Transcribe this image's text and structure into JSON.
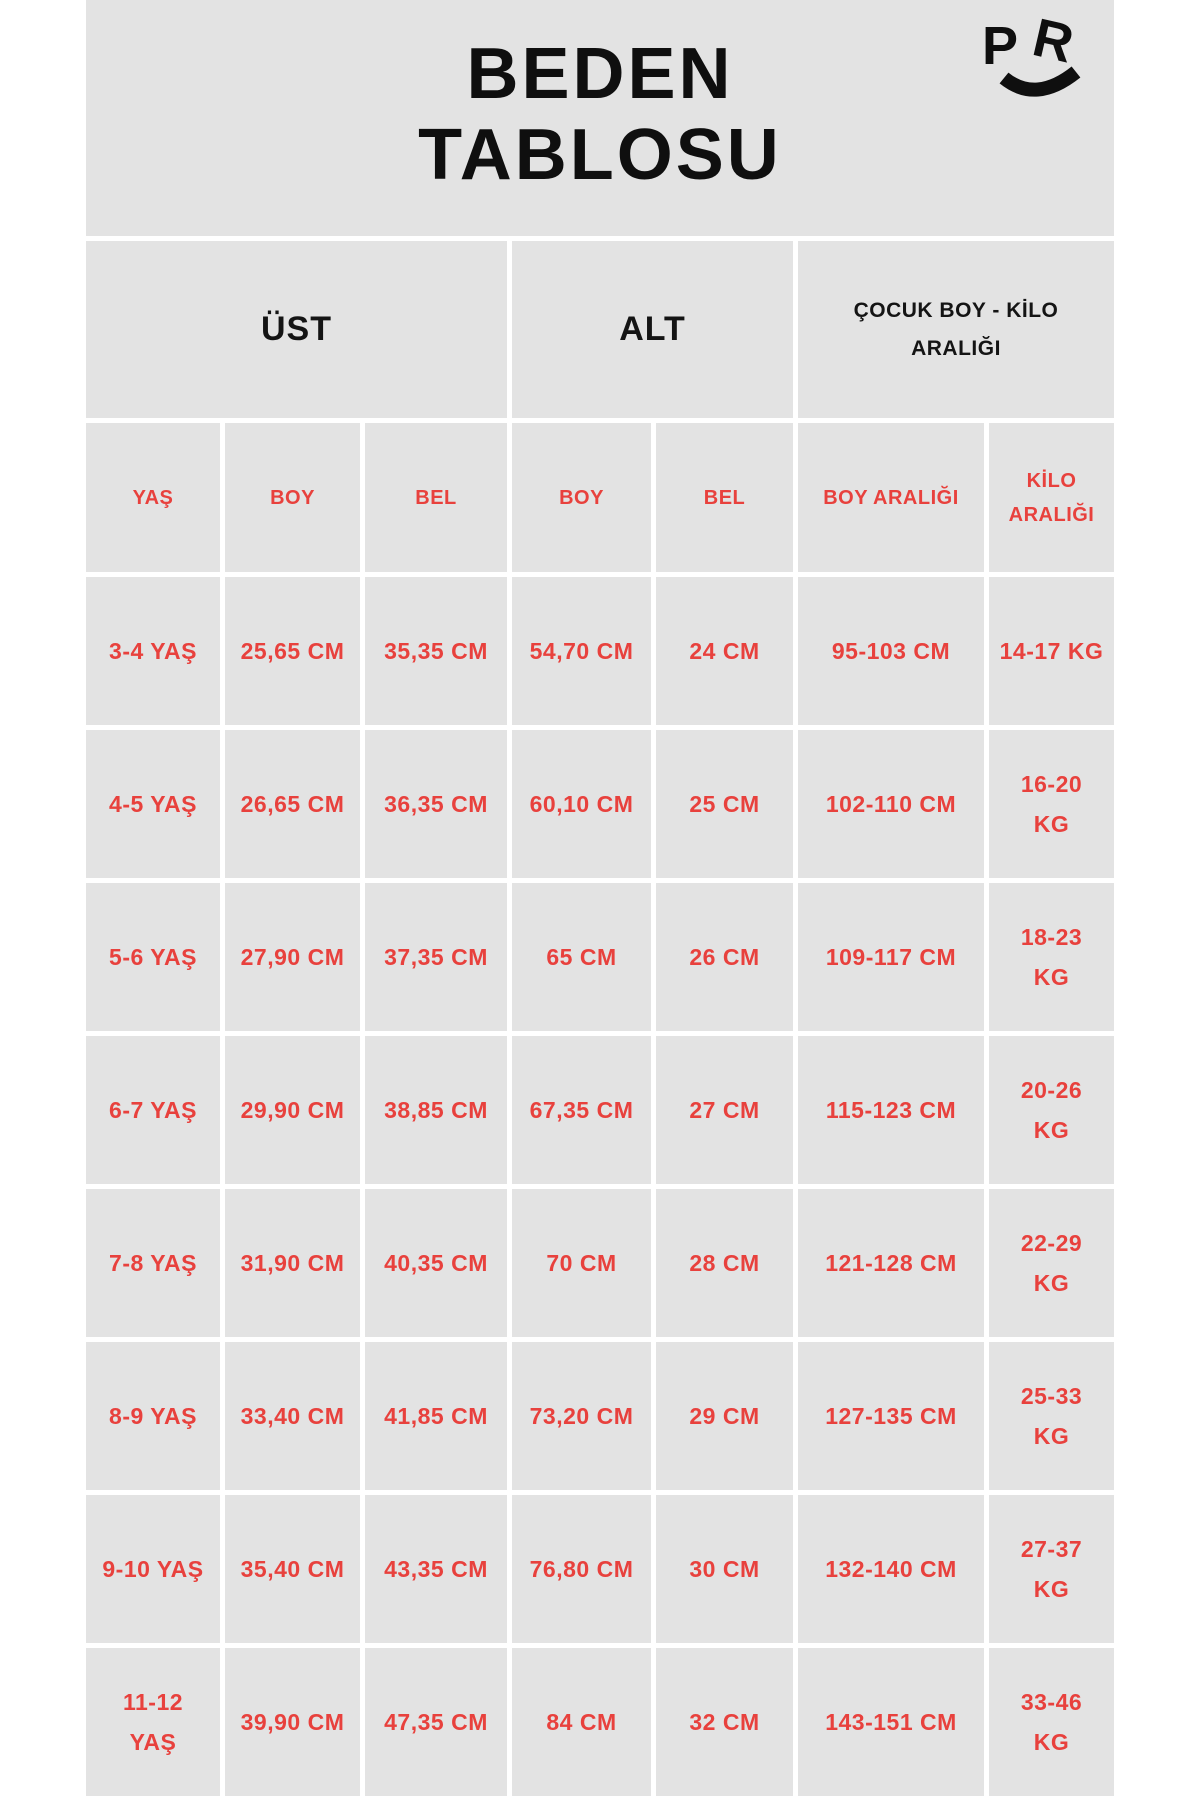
{
  "page": {
    "title_line1": "BEDEN",
    "title_line2": "TABLOSU",
    "logo": {
      "letter_1": "P",
      "letter_2": "R"
    }
  },
  "colors": {
    "page_background": "#ffffff",
    "panel_gray": "#e3e3e3",
    "accent_red": "#e8413d",
    "text_black": "#0f0f0f"
  },
  "table": {
    "group_headers": [
      {
        "label": "ÜST",
        "colspan": 3
      },
      {
        "label": "ALT",
        "colspan": 2
      },
      {
        "label": "ÇOCUK BOY - KİLO\nARALIĞI",
        "colspan": 2
      }
    ],
    "column_headers": [
      "YAŞ",
      "BOY",
      "BEL",
      "BOY",
      "BEL",
      "BOY ARALIĞI",
      "KİLO\nARALIĞI"
    ],
    "rows": [
      [
        "3-4 YAŞ",
        "25,65 CM",
        "35,35 CM",
        "54,70 CM",
        "24 CM",
        "95-103 CM",
        "14-17 KG"
      ],
      [
        "4-5 YAŞ",
        "26,65 CM",
        "36,35 CM",
        "60,10 CM",
        "25 CM",
        "102-110 CM",
        "16-20\nKG"
      ],
      [
        "5-6 YAŞ",
        "27,90 CM",
        "37,35 CM",
        "65 CM",
        "26 CM",
        "109-117 CM",
        "18-23\nKG"
      ],
      [
        "6-7 YAŞ",
        "29,90 CM",
        "38,85 CM",
        "67,35 CM",
        "27 CM",
        "115-123 CM",
        "20-26\nKG"
      ],
      [
        "7-8 YAŞ",
        "31,90 CM",
        "40,35 CM",
        "70 CM",
        "28 CM",
        "121-128 CM",
        "22-29\nKG"
      ],
      [
        "8-9 YAŞ",
        "33,40 CM",
        "41,85 CM",
        "73,20 CM",
        "29 CM",
        "127-135 CM",
        "25-33\nKG"
      ],
      [
        "9-10 YAŞ",
        "35,40 CM",
        "43,35 CM",
        "76,80 CM",
        "30 CM",
        "132-140 CM",
        "27-37\nKG"
      ],
      [
        "11-12\nYAŞ",
        "39,90 CM",
        "47,35 CM",
        "84 CM",
        "32 CM",
        "143-151 CM",
        "33-46\nKG"
      ]
    ]
  }
}
